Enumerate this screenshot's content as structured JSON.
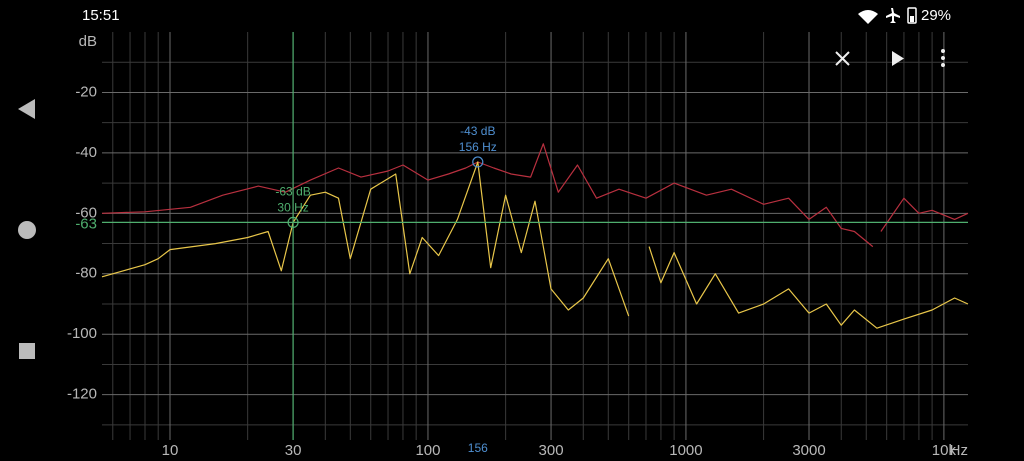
{
  "status_bar": {
    "time": "15:51",
    "battery": "29%"
  },
  "chart_data": {
    "type": "line",
    "log_x": true,
    "grid": true,
    "y_unit": "dB",
    "x_unit": "Hz",
    "xlim": [
      5.45,
      12400
    ],
    "ylim": [
      -135,
      0
    ],
    "xticks": [
      10,
      30,
      100,
      300,
      1000,
      3000,
      {
        "value": 10000,
        "label": "10k"
      }
    ],
    "xminorticks": [
      6,
      7,
      8,
      9,
      20,
      40,
      50,
      60,
      70,
      80,
      90,
      200,
      400,
      500,
      600,
      700,
      800,
      900,
      2000,
      4000,
      5000,
      6000,
      7000,
      8000,
      9000
    ],
    "yticks": [
      -20,
      -40,
      -60,
      -80,
      -100,
      -120
    ],
    "yminorticks": [
      -10,
      -30,
      -50,
      -70,
      -90,
      -110,
      -130
    ],
    "series": [
      {
        "color": "#b8303f",
        "x": [
          5.45,
          8,
          12,
          16,
          22,
          28,
          35,
          45,
          55,
          70,
          80,
          100,
          120,
          140,
          156,
          180,
          210,
          250,
          280,
          320,
          380,
          450,
          550,
          700,
          900,
          1200,
          1500,
          2000,
          2500,
          3000,
          3500,
          4000,
          4500,
          5300,
          5400,
          5700,
          7000,
          8000,
          9000,
          11000,
          12400
        ],
        "values": [
          -60,
          -59.5,
          -58,
          -54,
          -51,
          -53,
          -49,
          -45,
          -48,
          -46,
          -44,
          -49,
          -47,
          -45,
          -43,
          -45,
          -47,
          -48,
          -37,
          -53,
          -44,
          -55,
          -52,
          -55,
          -50,
          -54,
          -52,
          -57,
          -55,
          -62,
          -58,
          -65,
          -66,
          -71,
          null,
          -66,
          -55,
          -60,
          -59,
          -62,
          -60
        ]
      },
      {
        "color": "#e8c64a",
        "x": [
          5.45,
          8,
          9,
          10,
          15,
          20,
          24,
          27,
          30,
          35,
          40,
          45,
          50,
          60,
          75,
          85,
          95,
          110,
          130,
          156,
          175,
          200,
          230,
          260,
          300,
          350,
          400,
          500,
          600,
          690,
          720,
          800,
          900,
          1100,
          1300,
          1600,
          2000,
          2500,
          3000,
          3500,
          4000,
          4500,
          5500,
          7000,
          9000,
          11000,
          12400
        ],
        "values": [
          -81,
          -77,
          -75,
          -72,
          -70,
          -68,
          -66,
          -79,
          -63,
          -54,
          -53,
          -55,
          -75,
          -52,
          -47,
          -80,
          -68,
          -74,
          -62,
          -43,
          -78,
          -54,
          -73,
          -56,
          -85,
          -92,
          -88,
          -75,
          -94,
          null,
          -71,
          -83,
          -73,
          -90,
          -80,
          -93,
          -90,
          -85,
          -93,
          -90,
          -97,
          -92,
          -98,
          -95,
          -92,
          -88,
          -90
        ]
      }
    ],
    "cursors": [
      {
        "color": "#4fae6e",
        "x": 30,
        "y": -63,
        "db_label": "-63 dB",
        "hz_label": "30 Hz",
        "y_axis_label": "-63",
        "lines": true
      },
      {
        "color": "#4f8fd0",
        "x": 156,
        "y": -43,
        "db_label": "-43 dB",
        "hz_label": "156 Hz",
        "x_axis_label": "156",
        "lines": false
      }
    ]
  }
}
